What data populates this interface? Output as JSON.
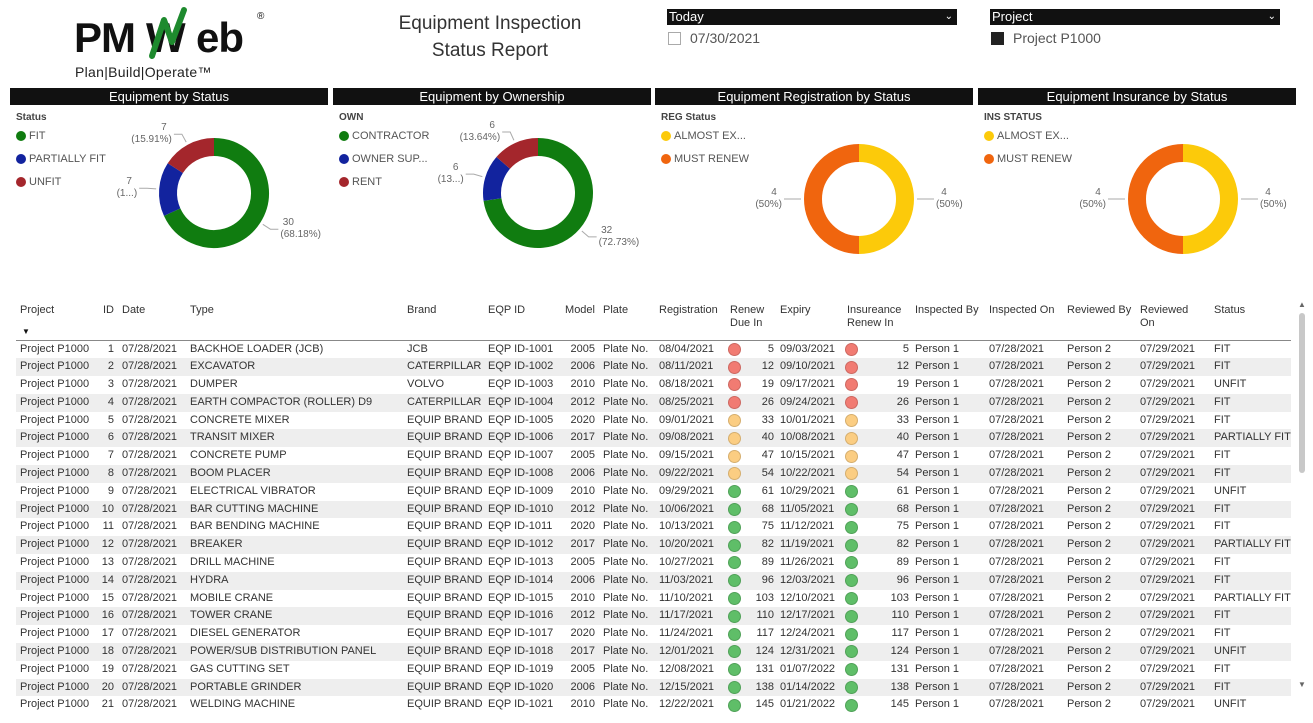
{
  "logo": {
    "text": "PMWeb",
    "registered": "®",
    "tagline": "Plan|Build|Operate™"
  },
  "report": {
    "title_line1": "Equipment Inspection",
    "title_line2": "Status Report"
  },
  "slicers": [
    {
      "label": "Today",
      "value": "07/30/2021",
      "checked": false
    },
    {
      "label": "Project",
      "value": "Project P1000",
      "checked": true
    }
  ],
  "colors": {
    "green": "#107c10",
    "navy": "#12239e",
    "red": "#a4262c",
    "yellow": "#fcca0a",
    "orange": "#f0650e",
    "dot_red": "#f17b72",
    "dot_amber": "#fbcd82",
    "dot_green": "#5fbe68"
  },
  "chart_data": [
    {
      "type": "pie",
      "title": "Equipment by Status",
      "legend_title": "Status",
      "categories": [
        "FIT",
        "PARTIALLY FIT",
        "UNFIT"
      ],
      "values": [
        30,
        7,
        7
      ],
      "labels": [
        "30\n(68.18%)",
        "7\n(1...)",
        "7\n(15.91%)"
      ],
      "colors": [
        "#107c10",
        "#12239e",
        "#a4262c"
      ]
    },
    {
      "type": "pie",
      "title": "Equipment by Ownership",
      "legend_title": "OWN",
      "categories": [
        "CONTRACTOR",
        "OWNER SUP...",
        "RENT"
      ],
      "values": [
        32,
        6,
        6
      ],
      "labels": [
        "32\n(72.73%)",
        "6\n(13...)",
        "6\n(13.64%)"
      ],
      "colors": [
        "#107c10",
        "#12239e",
        "#a4262c"
      ]
    },
    {
      "type": "pie",
      "title": "Equipment Registration by Status",
      "legend_title": "REG Status",
      "categories": [
        "ALMOST EX...",
        "MUST RENEW"
      ],
      "values": [
        4,
        4
      ],
      "labels": [
        "4\n(50%)",
        "4\n(50%)"
      ],
      "colors": [
        "#fcca0a",
        "#f0650e"
      ]
    },
    {
      "type": "pie",
      "title": "Equipment Insurance by Status",
      "legend_title": "INS STATUS",
      "categories": [
        "ALMOST EX...",
        "MUST RENEW"
      ],
      "values": [
        4,
        4
      ],
      "labels": [
        "4\n(50%)",
        "4\n(50%)"
      ],
      "colors": [
        "#fcca0a",
        "#f0650e"
      ]
    }
  ],
  "table": {
    "columns": [
      "Project",
      "ID",
      "Date",
      "Type",
      "Brand",
      "EQP ID",
      "Model",
      "Plate",
      "Registration",
      "Renew Due In",
      "Expiry",
      "Insureance Renew In",
      "Inspected By",
      "Inspected On",
      "Reviewed By",
      "Reviewed On",
      "Status"
    ],
    "rows": [
      [
        "Project P1000",
        "1",
        "07/28/2021",
        "BACKHOE LOADER (JCB)",
        "JCB",
        "EQP ID-1001",
        "2005",
        "Plate No.",
        "08/04/2021",
        "red",
        "5",
        "09/03/2021",
        "red",
        "5",
        "Person 1",
        "07/28/2021",
        "Person 2",
        "07/29/2021",
        "FIT"
      ],
      [
        "Project P1000",
        "2",
        "07/28/2021",
        "EXCAVATOR",
        "CATERPILLAR",
        "EQP ID-1002",
        "2006",
        "Plate No.",
        "08/11/2021",
        "red",
        "12",
        "09/10/2021",
        "red",
        "12",
        "Person 1",
        "07/28/2021",
        "Person 2",
        "07/29/2021",
        "FIT"
      ],
      [
        "Project P1000",
        "3",
        "07/28/2021",
        "DUMPER",
        "VOLVO",
        "EQP ID-1003",
        "2010",
        "Plate No.",
        "08/18/2021",
        "red",
        "19",
        "09/17/2021",
        "red",
        "19",
        "Person 1",
        "07/28/2021",
        "Person 2",
        "07/29/2021",
        "UNFIT"
      ],
      [
        "Project P1000",
        "4",
        "07/28/2021",
        "EARTH COMPACTOR (ROLLER) D9",
        "CATERPILLAR",
        "EQP ID-1004",
        "2012",
        "Plate No.",
        "08/25/2021",
        "red",
        "26",
        "09/24/2021",
        "red",
        "26",
        "Person 1",
        "07/28/2021",
        "Person 2",
        "07/29/2021",
        "FIT"
      ],
      [
        "Project P1000",
        "5",
        "07/28/2021",
        "CONCRETE MIXER",
        "EQUIP BRAND",
        "EQP ID-1005",
        "2020",
        "Plate No.",
        "09/01/2021",
        "amber",
        "33",
        "10/01/2021",
        "amber",
        "33",
        "Person 1",
        "07/28/2021",
        "Person 2",
        "07/29/2021",
        "FIT"
      ],
      [
        "Project P1000",
        "6",
        "07/28/2021",
        "TRANSIT MIXER",
        "EQUIP BRAND",
        "EQP ID-1006",
        "2017",
        "Plate No.",
        "09/08/2021",
        "amber",
        "40",
        "10/08/2021",
        "amber",
        "40",
        "Person 1",
        "07/28/2021",
        "Person 2",
        "07/29/2021",
        "PARTIALLY FIT"
      ],
      [
        "Project P1000",
        "7",
        "07/28/2021",
        "CONCRETE PUMP",
        "EQUIP BRAND",
        "EQP ID-1007",
        "2005",
        "Plate No.",
        "09/15/2021",
        "amber",
        "47",
        "10/15/2021",
        "amber",
        "47",
        "Person 1",
        "07/28/2021",
        "Person 2",
        "07/29/2021",
        "FIT"
      ],
      [
        "Project P1000",
        "8",
        "07/28/2021",
        "BOOM PLACER",
        "EQUIP BRAND",
        "EQP ID-1008",
        "2006",
        "Plate No.",
        "09/22/2021",
        "amber",
        "54",
        "10/22/2021",
        "amber",
        "54",
        "Person 1",
        "07/28/2021",
        "Person 2",
        "07/29/2021",
        "FIT"
      ],
      [
        "Project P1000",
        "9",
        "07/28/2021",
        "ELECTRICAL VIBRATOR",
        "EQUIP BRAND",
        "EQP ID-1009",
        "2010",
        "Plate No.",
        "09/29/2021",
        "green",
        "61",
        "10/29/2021",
        "green",
        "61",
        "Person 1",
        "07/28/2021",
        "Person 2",
        "07/29/2021",
        "UNFIT"
      ],
      [
        "Project P1000",
        "10",
        "07/28/2021",
        "BAR CUTTING MACHINE",
        "EQUIP BRAND",
        "EQP ID-1010",
        "2012",
        "Plate No.",
        "10/06/2021",
        "green",
        "68",
        "11/05/2021",
        "green",
        "68",
        "Person 1",
        "07/28/2021",
        "Person 2",
        "07/29/2021",
        "FIT"
      ],
      [
        "Project P1000",
        "11",
        "07/28/2021",
        "BAR BENDING MACHINE",
        "EQUIP BRAND",
        "EQP ID-1011",
        "2020",
        "Plate No.",
        "10/13/2021",
        "green",
        "75",
        "11/12/2021",
        "green",
        "75",
        "Person 1",
        "07/28/2021",
        "Person 2",
        "07/29/2021",
        "FIT"
      ],
      [
        "Project P1000",
        "12",
        "07/28/2021",
        "BREAKER",
        "EQUIP BRAND",
        "EQP ID-1012",
        "2017",
        "Plate No.",
        "10/20/2021",
        "green",
        "82",
        "11/19/2021",
        "green",
        "82",
        "Person 1",
        "07/28/2021",
        "Person 2",
        "07/29/2021",
        "PARTIALLY FIT"
      ],
      [
        "Project P1000",
        "13",
        "07/28/2021",
        "DRILL MACHINE",
        "EQUIP BRAND",
        "EQP ID-1013",
        "2005",
        "Plate No.",
        "10/27/2021",
        "green",
        "89",
        "11/26/2021",
        "green",
        "89",
        "Person 1",
        "07/28/2021",
        "Person 2",
        "07/29/2021",
        "FIT"
      ],
      [
        "Project P1000",
        "14",
        "07/28/2021",
        "HYDRA",
        "EQUIP BRAND",
        "EQP ID-1014",
        "2006",
        "Plate No.",
        "11/03/2021",
        "green",
        "96",
        "12/03/2021",
        "green",
        "96",
        "Person 1",
        "07/28/2021",
        "Person 2",
        "07/29/2021",
        "FIT"
      ],
      [
        "Project P1000",
        "15",
        "07/28/2021",
        "MOBILE CRANE",
        "EQUIP BRAND",
        "EQP ID-1015",
        "2010",
        "Plate No.",
        "11/10/2021",
        "green",
        "103",
        "12/10/2021",
        "green",
        "103",
        "Person 1",
        "07/28/2021",
        "Person 2",
        "07/29/2021",
        "PARTIALLY FIT"
      ],
      [
        "Project P1000",
        "16",
        "07/28/2021",
        "TOWER CRANE",
        "EQUIP BRAND",
        "EQP ID-1016",
        "2012",
        "Plate No.",
        "11/17/2021",
        "green",
        "110",
        "12/17/2021",
        "green",
        "110",
        "Person 1",
        "07/28/2021",
        "Person 2",
        "07/29/2021",
        "FIT"
      ],
      [
        "Project P1000",
        "17",
        "07/28/2021",
        "DIESEL GENERATOR",
        "EQUIP BRAND",
        "EQP ID-1017",
        "2020",
        "Plate No.",
        "11/24/2021",
        "green",
        "117",
        "12/24/2021",
        "green",
        "117",
        "Person 1",
        "07/28/2021",
        "Person 2",
        "07/29/2021",
        "FIT"
      ],
      [
        "Project P1000",
        "18",
        "07/28/2021",
        "POWER/SUB DISTRIBUTION PANEL",
        "EQUIP BRAND",
        "EQP ID-1018",
        "2017",
        "Plate No.",
        "12/01/2021",
        "green",
        "124",
        "12/31/2021",
        "green",
        "124",
        "Person 1",
        "07/28/2021",
        "Person 2",
        "07/29/2021",
        "UNFIT"
      ],
      [
        "Project P1000",
        "19",
        "07/28/2021",
        "GAS CUTTING SET",
        "EQUIP BRAND",
        "EQP ID-1019",
        "2005",
        "Plate No.",
        "12/08/2021",
        "green",
        "131",
        "01/07/2022",
        "green",
        "131",
        "Person 1",
        "07/28/2021",
        "Person 2",
        "07/29/2021",
        "FIT"
      ],
      [
        "Project P1000",
        "20",
        "07/28/2021",
        "PORTABLE GRINDER",
        "EQUIP BRAND",
        "EQP ID-1020",
        "2006",
        "Plate No.",
        "12/15/2021",
        "green",
        "138",
        "01/14/2022",
        "green",
        "138",
        "Person 1",
        "07/28/2021",
        "Person 2",
        "07/29/2021",
        "FIT"
      ],
      [
        "Project P1000",
        "21",
        "07/28/2021",
        "WELDING MACHINE",
        "EQUIP BRAND",
        "EQP ID-1021",
        "2010",
        "Plate No.",
        "12/22/2021",
        "green",
        "145",
        "01/21/2022",
        "green",
        "145",
        "Person 1",
        "07/28/2021",
        "Person 2",
        "07/29/2021",
        "UNFIT"
      ]
    ]
  }
}
